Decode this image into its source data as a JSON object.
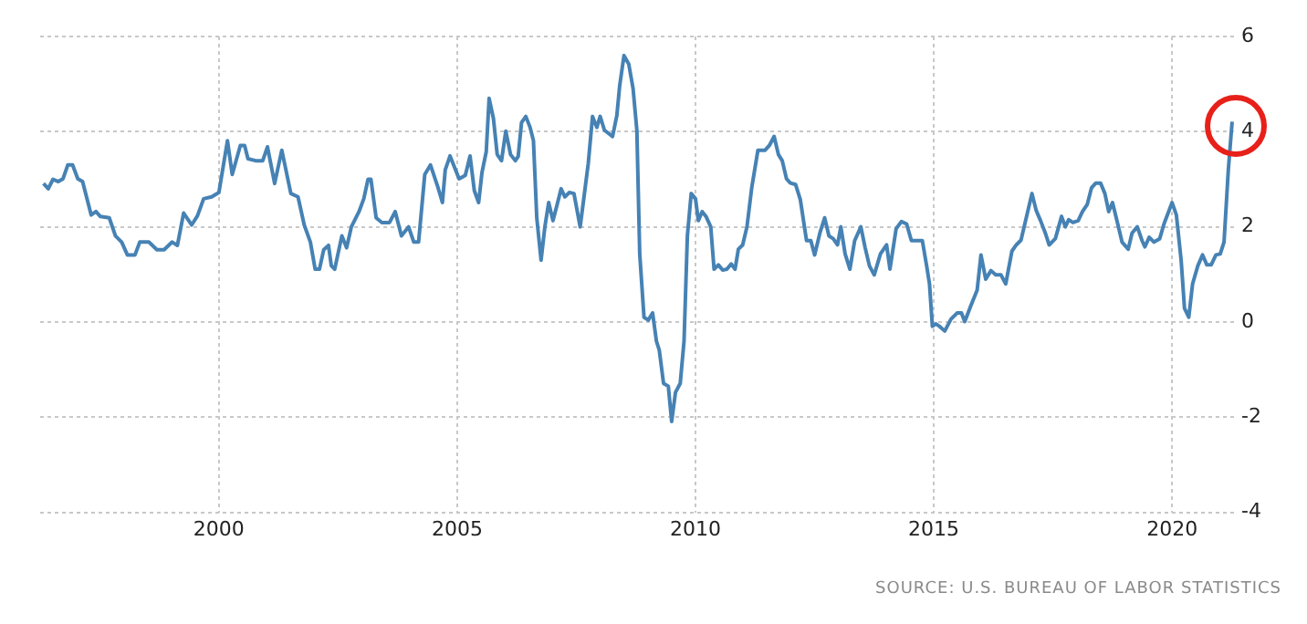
{
  "chart_data": {
    "type": "line",
    "x": [
      1996.32,
      1996.42,
      1996.52,
      1996.63,
      1996.73,
      1996.83,
      1996.93,
      1997.04,
      1997.14,
      1997.32,
      1997.42,
      1997.51,
      1997.7,
      1997.83,
      1997.96,
      1998.08,
      1998.24,
      1998.34,
      1998.53,
      1998.7,
      1998.85,
      1999.02,
      1999.13,
      1999.26,
      1999.43,
      1999.55,
      1999.68,
      1999.85,
      2000.0,
      2000.18,
      2000.28,
      2000.45,
      2000.54,
      2000.61,
      2000.77,
      2000.92,
      2001.02,
      2001.17,
      2001.32,
      2001.51,
      2001.66,
      2001.79,
      2001.92,
      2002.02,
      2002.11,
      2002.2,
      2002.3,
      2002.36,
      2002.43,
      2002.58,
      2002.68,
      2002.78,
      2002.94,
      2003.04,
      2003.13,
      2003.19,
      2003.3,
      2003.42,
      2003.58,
      2003.7,
      2003.83,
      2003.98,
      2004.09,
      2004.19,
      2004.32,
      2004.44,
      2004.59,
      2004.69,
      2004.75,
      2004.85,
      2005.04,
      2005.17,
      2005.27,
      2005.36,
      2005.45,
      2005.52,
      2005.61,
      2005.67,
      2005.76,
      2005.84,
      2005.93,
      2006.02,
      2006.12,
      2006.22,
      2006.28,
      2006.35,
      2006.44,
      2006.53,
      2006.6,
      2006.67,
      2006.76,
      2006.84,
      2006.92,
      2007.01,
      2007.09,
      2007.18,
      2007.26,
      2007.35,
      2007.45,
      2007.58,
      2007.67,
      2007.75,
      2007.84,
      2007.93,
      2008.0,
      2008.09,
      2008.26,
      2008.35,
      2008.41,
      2008.5,
      2008.6,
      2008.69,
      2008.77,
      2008.83,
      2008.92,
      2009.01,
      2009.1,
      2009.18,
      2009.24,
      2009.33,
      2009.43,
      2009.5,
      2009.58,
      2009.68,
      2009.76,
      2009.83,
      2009.91,
      2010.0,
      2010.06,
      2010.14,
      2010.22,
      2010.32,
      2010.39,
      2010.48,
      2010.57,
      2010.66,
      2010.75,
      2010.83,
      2010.9,
      2010.99,
      2011.08,
      2011.18,
      2011.31,
      2011.46,
      2011.55,
      2011.65,
      2011.74,
      2011.82,
      2011.91,
      2011.99,
      2012.1,
      2012.2,
      2012.33,
      2012.42,
      2012.5,
      2012.61,
      2012.71,
      2012.8,
      2012.89,
      2012.98,
      2013.05,
      2013.14,
      2013.24,
      2013.34,
      2013.47,
      2013.56,
      2013.65,
      2013.75,
      2013.88,
      2014.01,
      2014.08,
      2014.21,
      2014.32,
      2014.43,
      2014.53,
      2014.65,
      2014.76,
      2014.85,
      2014.91,
      2014.97,
      2015.04,
      2015.12,
      2015.23,
      2015.36,
      2015.49,
      2015.58,
      2015.65,
      2015.78,
      2015.91,
      2015.99,
      2016.09,
      2016.2,
      2016.3,
      2016.41,
      2016.51,
      2016.64,
      2016.73,
      2016.83,
      2016.94,
      2017.06,
      2017.15,
      2017.24,
      2017.34,
      2017.42,
      2017.55,
      2017.62,
      2017.68,
      2017.76,
      2017.83,
      2017.92,
      2018.03,
      2018.12,
      2018.22,
      2018.31,
      2018.4,
      2018.5,
      2018.59,
      2018.67,
      2018.75,
      2018.86,
      2018.95,
      2019.08,
      2019.16,
      2019.27,
      2019.37,
      2019.43,
      2019.52,
      2019.62,
      2019.74,
      2019.83,
      2020.0,
      2020.09,
      2020.19,
      2020.26,
      2020.35,
      2020.43,
      2020.54,
      2020.64,
      2020.73,
      2020.82,
      2020.92,
      2021.01,
      2021.09,
      2021.18,
      2021.26
    ],
    "series": [
      {
        "color": "#4682b4",
        "values": [
          2.91,
          2.8,
          3.0,
          2.95,
          3.01,
          3.3,
          3.3,
          3.01,
          2.95,
          2.25,
          2.32,
          2.22,
          2.19,
          1.81,
          1.68,
          1.41,
          1.41,
          1.68,
          1.68,
          1.52,
          1.52,
          1.68,
          1.61,
          2.29,
          2.04,
          2.23,
          2.59,
          2.63,
          2.72,
          3.81,
          3.1,
          3.71,
          3.71,
          3.43,
          3.39,
          3.39,
          3.68,
          2.91,
          3.61,
          2.7,
          2.63,
          2.04,
          1.68,
          1.11,
          1.11,
          1.52,
          1.61,
          1.18,
          1.11,
          1.81,
          1.56,
          2.0,
          2.32,
          2.59,
          3.0,
          3.0,
          2.19,
          2.09,
          2.09,
          2.32,
          1.81,
          2.0,
          1.68,
          1.68,
          3.1,
          3.3,
          2.85,
          2.51,
          3.2,
          3.49,
          3.01,
          3.08,
          3.49,
          2.76,
          2.51,
          3.14,
          3.58,
          4.7,
          4.28,
          3.52,
          3.39,
          4.01,
          3.52,
          3.39,
          3.48,
          4.19,
          4.32,
          4.09,
          3.81,
          2.19,
          1.3,
          2.0,
          2.51,
          2.13,
          2.44,
          2.8,
          2.63,
          2.72,
          2.7,
          2.0,
          2.7,
          3.33,
          4.32,
          4.09,
          4.32,
          4.03,
          3.9,
          4.34,
          4.97,
          5.6,
          5.42,
          4.91,
          4.03,
          1.43,
          0.1,
          0.04,
          0.19,
          -0.4,
          -0.59,
          -1.29,
          -1.35,
          -2.09,
          -1.48,
          -1.29,
          -0.4,
          1.81,
          2.7,
          2.59,
          2.13,
          2.32,
          2.22,
          2.0,
          1.11,
          1.2,
          1.09,
          1.11,
          1.22,
          1.11,
          1.53,
          1.62,
          2.0,
          2.82,
          3.61,
          3.61,
          3.71,
          3.9,
          3.52,
          3.39,
          3.01,
          2.92,
          2.89,
          2.57,
          1.71,
          1.71,
          1.41,
          1.87,
          2.19,
          1.81,
          1.75,
          1.62,
          2.0,
          1.43,
          1.11,
          1.71,
          2.0,
          1.56,
          1.18,
          0.99,
          1.43,
          1.62,
          1.11,
          1.96,
          2.11,
          2.06,
          1.71,
          1.71,
          1.71,
          1.18,
          0.8,
          -0.09,
          -0.04,
          -0.09,
          -0.19,
          0.06,
          0.19,
          0.19,
          0.01,
          0.35,
          0.67,
          1.41,
          0.9,
          1.08,
          0.99,
          0.99,
          0.8,
          1.49,
          1.62,
          1.72,
          2.19,
          2.7,
          2.34,
          2.13,
          1.87,
          1.62,
          1.75,
          2.0,
          2.22,
          2.0,
          2.15,
          2.09,
          2.13,
          2.32,
          2.47,
          2.82,
          2.92,
          2.92,
          2.7,
          2.32,
          2.51,
          2.06,
          1.68,
          1.53,
          1.87,
          2.0,
          1.71,
          1.58,
          1.78,
          1.68,
          1.75,
          2.06,
          2.51,
          2.25,
          1.3,
          0.29,
          0.1,
          0.8,
          1.18,
          1.41,
          1.2,
          1.2,
          1.41,
          1.43,
          1.68,
          3.2,
          4.21
        ]
      }
    ],
    "xlim": [
      1996.25,
      2021.3
    ],
    "xticks": [
      2000,
      2005,
      2010,
      2015,
      2020
    ],
    "ylim": [
      -4,
      6
    ],
    "yticks": [
      -4,
      -2,
      0,
      2,
      4,
      6
    ],
    "grid": true,
    "marker": "none",
    "line_style": "solid",
    "annotations": [
      "SOURCE: U.S. BUREAU OF LABOR STATISTICS"
    ]
  }
}
